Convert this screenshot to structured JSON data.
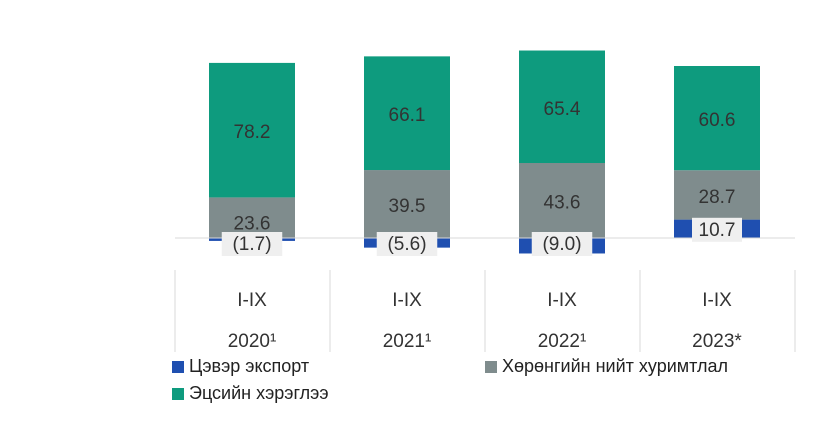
{
  "chart_data": {
    "type": "bar",
    "stacked": true,
    "categories": [
      {
        "period": "I-IX",
        "year": "2020¹"
      },
      {
        "period": "I-IX",
        "year": "2021¹"
      },
      {
        "period": "I-IX",
        "year": "2022¹"
      },
      {
        "period": "I-IX",
        "year": "2023*"
      }
    ],
    "series": [
      {
        "name": "Цэвэр экспорт",
        "color": "#1f4fb0",
        "values": [
          -1.7,
          -5.6,
          -9.0,
          10.7
        ],
        "labels": [
          "(1.7)",
          "(5.6)",
          "(9.0)",
          "10.7"
        ]
      },
      {
        "name": "Хөрөнгийн нийт хуримтлал",
        "color": "#7f8c8d",
        "values": [
          23.6,
          39.5,
          43.6,
          28.7
        ],
        "labels": [
          "23.6",
          "39.5",
          "43.6",
          "28.7"
        ]
      },
      {
        "name": "Эцсийн хэрэглээ",
        "color": "#0e9b7e",
        "values": [
          78.2,
          66.1,
          65.4,
          60.6
        ],
        "labels": [
          "78.2",
          "66.1",
          "65.4",
          "60.6"
        ]
      }
    ],
    "legend_position": "bottom-left",
    "grid": false
  },
  "legend": {
    "net_export": "Цэвэр экспорт",
    "investment": "Хөрөнгийн нийт хуримтлал",
    "consumption": "Эцсийн хэрэглээ"
  }
}
